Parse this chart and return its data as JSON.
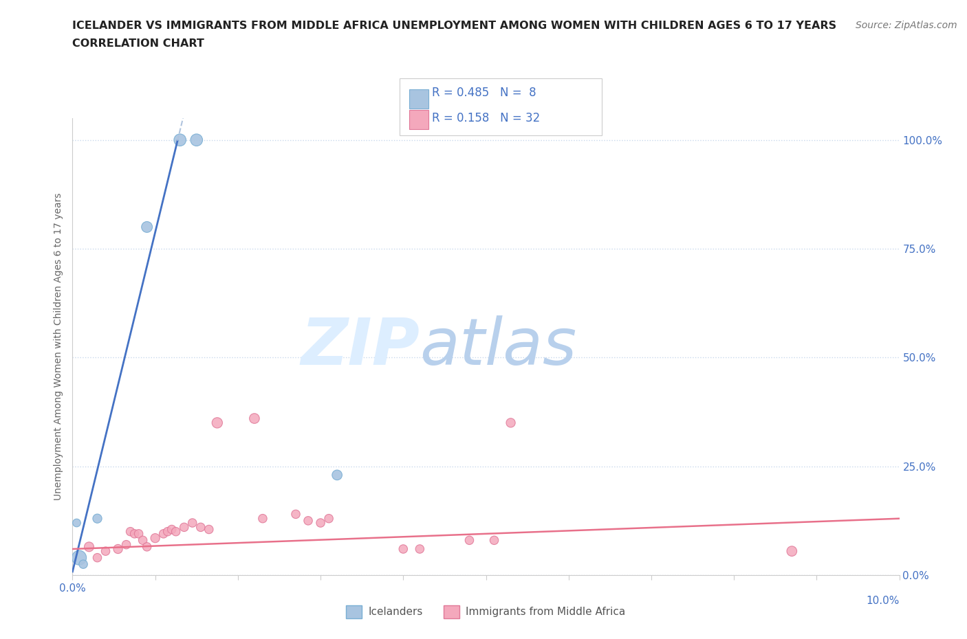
{
  "title_line1": "ICELANDER VS IMMIGRANTS FROM MIDDLE AFRICA UNEMPLOYMENT AMONG WOMEN WITH CHILDREN AGES 6 TO 17 YEARS",
  "title_line2": "CORRELATION CHART",
  "source": "Source: ZipAtlas.com",
  "ylabel": "Unemployment Among Women with Children Ages 6 to 17 years",
  "xlim": [
    0.0,
    0.1
  ],
  "ylim": [
    0.0,
    1.05
  ],
  "xtick_positions": [
    0.0,
    0.01,
    0.02,
    0.03,
    0.04,
    0.05,
    0.06,
    0.07,
    0.08,
    0.09,
    0.1
  ],
  "xtick_labels_show": [
    0.0,
    0.1
  ],
  "yticks": [
    0.0,
    0.25,
    0.5,
    0.75,
    1.0
  ],
  "legend_r_blue": "R = 0.485",
  "legend_n_blue": "N =  8",
  "legend_r_pink": "R = 0.158",
  "legend_n_pink": "N = 32",
  "icelander_x": [
    0.013,
    0.015,
    0.009,
    0.003,
    0.0005,
    0.0008,
    0.032,
    0.0013
  ],
  "icelander_y": [
    1.0,
    1.0,
    0.8,
    0.13,
    0.12,
    0.04,
    0.23,
    0.025
  ],
  "icelander_size": [
    160,
    160,
    130,
    90,
    70,
    230,
    110,
    80
  ],
  "immigrants_x": [
    0.002,
    0.003,
    0.004,
    0.0055,
    0.0065,
    0.007,
    0.0075,
    0.008,
    0.0085,
    0.009,
    0.01,
    0.011,
    0.0115,
    0.012,
    0.0125,
    0.0135,
    0.0145,
    0.0155,
    0.0165,
    0.0175,
    0.022,
    0.023,
    0.027,
    0.0285,
    0.03,
    0.031,
    0.04,
    0.042,
    0.048,
    0.051,
    0.053,
    0.087
  ],
  "immigrants_y": [
    0.065,
    0.04,
    0.055,
    0.06,
    0.07,
    0.1,
    0.095,
    0.095,
    0.08,
    0.065,
    0.085,
    0.095,
    0.1,
    0.105,
    0.1,
    0.11,
    0.12,
    0.11,
    0.105,
    0.35,
    0.36,
    0.13,
    0.14,
    0.125,
    0.12,
    0.13,
    0.06,
    0.06,
    0.08,
    0.08,
    0.35,
    0.055
  ],
  "immigrants_size": [
    100,
    80,
    80,
    90,
    80,
    80,
    80,
    80,
    80,
    80,
    90,
    80,
    80,
    80,
    80,
    80,
    80,
    80,
    80,
    120,
    110,
    80,
    80,
    80,
    80,
    80,
    80,
    80,
    80,
    80,
    90,
    110
  ],
  "blue_dot_color": "#a8c4e0",
  "blue_dot_edge": "#7aafd4",
  "pink_dot_color": "#f4a8bc",
  "pink_dot_edge": "#e07898",
  "blue_line_color": "#4472c4",
  "pink_line_color": "#e8708a",
  "dashed_line_color": "#b0c4de",
  "grid_color": "#c8d8ec",
  "tick_color": "#4472c4",
  "spine_color": "#cccccc",
  "background_color": "#ffffff",
  "legend_box_edge": "#cccccc",
  "blue_line_slope": 78.0,
  "blue_line_intercept": 0.008,
  "pink_line_slope": 0.7,
  "pink_line_intercept": 0.06
}
